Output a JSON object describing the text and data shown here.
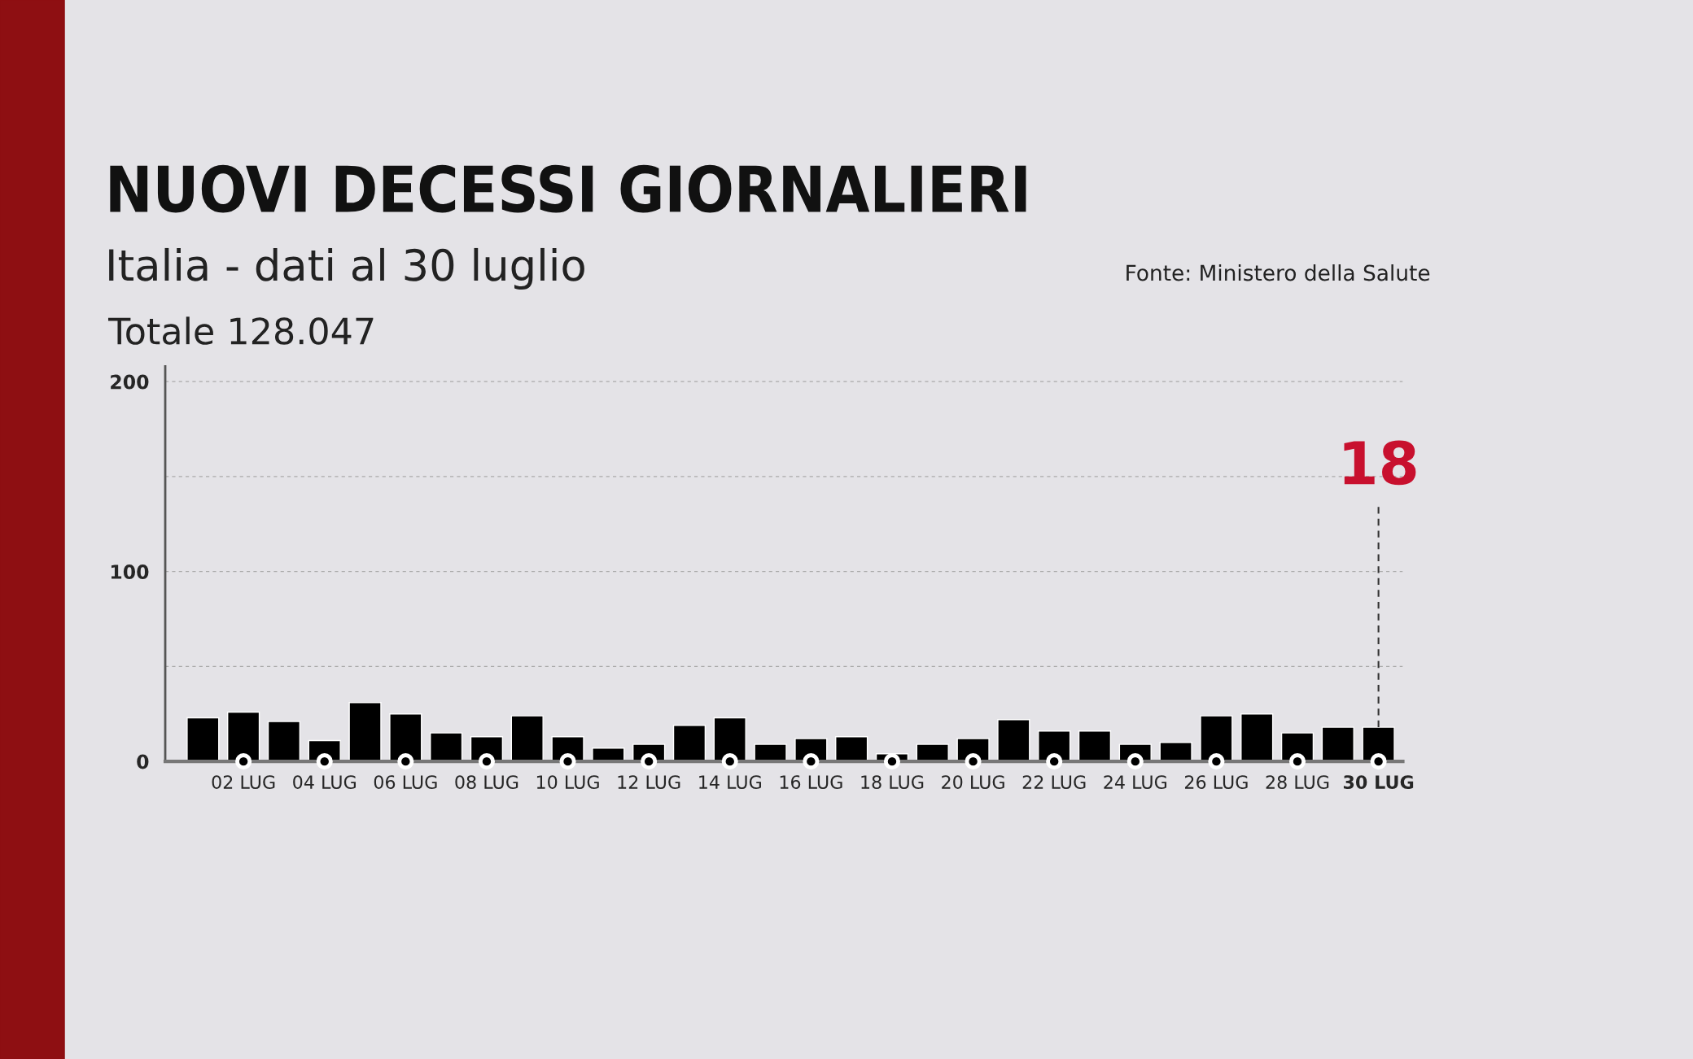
{
  "chart_data": {
    "type": "bar",
    "title": "NUOVI DECESSI GIORNALIERI",
    "subtitle": "Italia - dati al 30 luglio",
    "annotations": [
      "Totale 128.047",
      "Fonte: Ministero della Salute"
    ],
    "categories": [
      null,
      "02 LUG",
      null,
      "04 LUG",
      null,
      "06 LUG",
      null,
      "08 LUG",
      null,
      "10 LUG",
      null,
      "12 LUG",
      null,
      "14 LUG",
      null,
      "16 LUG",
      null,
      "18 LUG",
      null,
      "20 LUG",
      null,
      "22 LUG",
      null,
      "24 LUG",
      null,
      "26 LUG",
      null,
      "28 LUG",
      null,
      "30 LUG"
    ],
    "values": [
      23,
      26,
      21,
      11,
      31,
      25,
      15,
      13,
      24,
      13,
      7,
      9,
      19,
      23,
      9,
      12,
      13,
      4,
      9,
      12,
      22,
      16,
      16,
      9,
      10,
      24,
      25,
      15,
      18,
      18
    ],
    "value_labels": [
      null,
      null,
      null,
      null,
      null,
      null,
      null,
      null,
      null,
      null,
      null,
      null,
      null,
      null,
      null,
      null,
      null,
      null,
      null,
      null,
      null,
      null,
      null,
      null,
      null,
      null,
      null,
      null,
      null,
      "18"
    ],
    "color": "#000000",
    "ylim": [
      0,
      208
    ],
    "yticks": [
      0,
      {
        "value": 50,
        "label": null
      },
      100,
      {
        "value": 150,
        "label": null
      },
      200
    ],
    "grid": "y"
  }
}
